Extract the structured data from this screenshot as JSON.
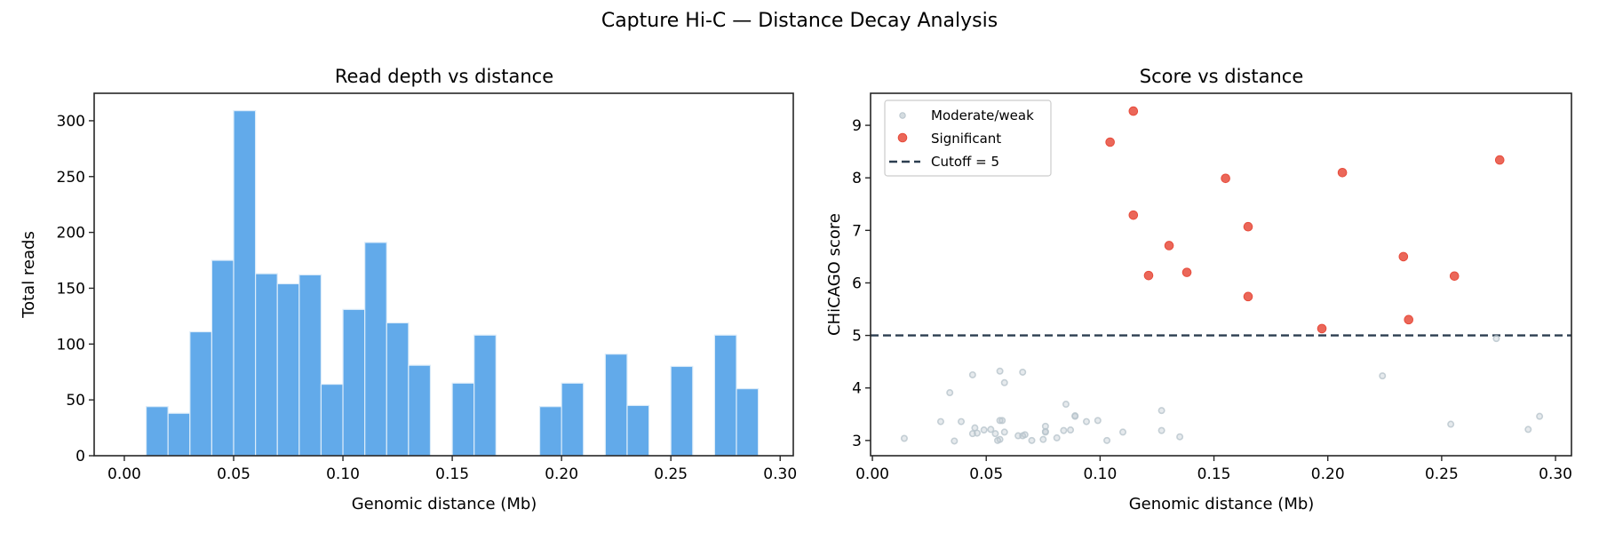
{
  "figure": {
    "title": "Capture Hi-C — Distance Decay Analysis"
  },
  "colors": {
    "bar_fill": "#62aaea",
    "bar_edge": "#dcecf9",
    "significant": "#e74c3c",
    "weak": "#b8c4cc",
    "cutoff_line": "#2c3e50",
    "axes": "#262626"
  },
  "chart_data": [
    {
      "type": "bar",
      "title": "Read depth vs distance",
      "xlabel": "Genomic distance (Mb)",
      "ylabel": "Total reads",
      "bin_width": 0.01,
      "bin_starts": [
        0.01,
        0.02,
        0.03,
        0.04,
        0.05,
        0.06,
        0.07,
        0.08,
        0.09,
        0.1,
        0.11,
        0.12,
        0.13,
        0.15,
        0.16,
        0.19,
        0.2,
        0.22,
        0.23,
        0.25,
        0.27,
        0.28
      ],
      "values": [
        44,
        38,
        111,
        175,
        309,
        163,
        154,
        162,
        64,
        131,
        191,
        119,
        81,
        65,
        108,
        44,
        65,
        91,
        45,
        80,
        108,
        60
      ],
      "xlim": [
        -0.0138,
        0.306
      ],
      "ylim": [
        0,
        324.6
      ],
      "xticks": [
        "0.00",
        "0.05",
        "0.10",
        "0.15",
        "0.20",
        "0.25",
        "0.30"
      ],
      "yticks": [
        "0",
        "50",
        "100",
        "150",
        "200",
        "250",
        "300"
      ],
      "grid": false
    },
    {
      "type": "scatter",
      "title": "Score vs distance",
      "xlabel": "Genomic distance (Mb)",
      "ylabel": "CHiCAGO score",
      "xlim": [
        -0.0008,
        0.307
      ],
      "ylim": [
        2.71,
        9.61
      ],
      "xticks": [
        "0.00",
        "0.05",
        "0.10",
        "0.15",
        "0.20",
        "0.25",
        "0.30"
      ],
      "yticks": [
        "3",
        "4",
        "5",
        "6",
        "7",
        "8",
        "9"
      ],
      "grid": false,
      "legend": {
        "position": "upper left",
        "entries": [
          "Moderate/weak",
          "Significant",
          "Cutoff = 5"
        ]
      },
      "cutoff": 5,
      "series": [
        {
          "name": "Moderate/weak",
          "points": [
            [
              0.014,
              3.04
            ],
            [
              0.03,
              3.36
            ],
            [
              0.034,
              3.91
            ],
            [
              0.036,
              2.99
            ],
            [
              0.039,
              3.36
            ],
            [
              0.044,
              4.25
            ],
            [
              0.044,
              3.13
            ],
            [
              0.045,
              3.24
            ],
            [
              0.046,
              3.14
            ],
            [
              0.049,
              3.2
            ],
            [
              0.052,
              3.21
            ],
            [
              0.054,
              3.13
            ],
            [
              0.055,
              3.0
            ],
            [
              0.056,
              4.32
            ],
            [
              0.056,
              3.38
            ],
            [
              0.057,
              3.38
            ],
            [
              0.056,
              3.02
            ],
            [
              0.058,
              4.1
            ],
            [
              0.058,
              3.16
            ],
            [
              0.064,
              3.09
            ],
            [
              0.066,
              4.3
            ],
            [
              0.066,
              3.09
            ],
            [
              0.067,
              3.11
            ],
            [
              0.07,
              3.0
            ],
            [
              0.075,
              3.02
            ],
            [
              0.076,
              3.27
            ],
            [
              0.076,
              3.17
            ],
            [
              0.076,
              3.16
            ],
            [
              0.081,
              3.05
            ],
            [
              0.084,
              3.19
            ],
            [
              0.085,
              3.69
            ],
            [
              0.087,
              3.2
            ],
            [
              0.089,
              3.47
            ],
            [
              0.089,
              3.46
            ],
            [
              0.094,
              3.36
            ],
            [
              0.099,
              3.38
            ],
            [
              0.103,
              3.0
            ],
            [
              0.11,
              3.16
            ],
            [
              0.127,
              3.57
            ],
            [
              0.127,
              3.19
            ],
            [
              0.135,
              3.07
            ],
            [
              0.224,
              4.23
            ],
            [
              0.254,
              3.31
            ],
            [
              0.274,
              4.94
            ],
            [
              0.288,
              3.21
            ],
            [
              0.293,
              3.46
            ]
          ]
        },
        {
          "name": "Significant",
          "points": [
            [
              0.1146,
              9.27
            ],
            [
              0.1044,
              8.68
            ],
            [
              0.2755,
              8.34
            ],
            [
              0.2064,
              8.1
            ],
            [
              0.1551,
              7.99
            ],
            [
              0.1146,
              7.29
            ],
            [
              0.165,
              7.07
            ],
            [
              0.1303,
              6.71
            ],
            [
              0.2332,
              6.5
            ],
            [
              0.1213,
              6.14
            ],
            [
              0.1381,
              6.2
            ],
            [
              0.2556,
              6.13
            ],
            [
              0.165,
              5.74
            ],
            [
              0.2355,
              5.3
            ],
            [
              0.1974,
              5.13
            ]
          ]
        }
      ]
    }
  ]
}
